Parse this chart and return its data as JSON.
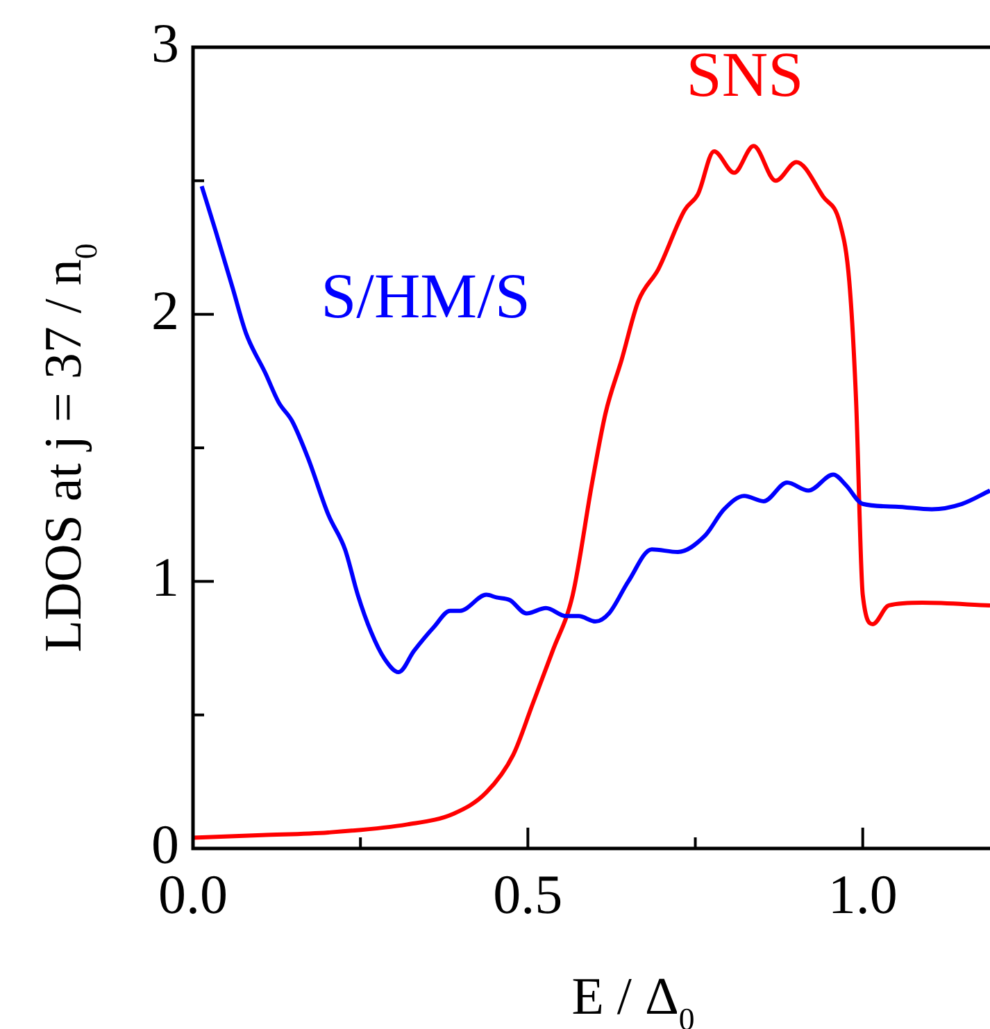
{
  "chart_data": {
    "type": "line",
    "xlabel": "E / Δ$_{0}$",
    "ylabel": "LDOS at j = 37 / n$_{0}$",
    "xlim": [
      0,
      1.19
    ],
    "ylim": [
      0,
      3
    ],
    "xticks": [
      {
        "value": 0,
        "label": "0.0"
      },
      {
        "value": 0.25,
        "label": null
      },
      {
        "value": 0.5,
        "label": "0.5"
      },
      {
        "value": 0.75,
        "label": null
      },
      {
        "value": 1,
        "label": "1.0"
      }
    ],
    "yticks": [
      0,
      {
        "value": 0.5,
        "label": null
      },
      1,
      {
        "value": 1.5,
        "label": null
      },
      2,
      {
        "value": 2.5,
        "label": null
      },
      3
    ],
    "grid": false,
    "legend": false,
    "marker": "none",
    "line_style": "solid",
    "series": [
      {
        "name": "S/HM/S",
        "color": "#0000ff",
        "x": [
          0.013,
          0.034,
          0.059,
          0.079,
          0.108,
          0.128,
          0.148,
          0.172,
          0.202,
          0.227,
          0.246,
          0.266,
          0.286,
          0.307,
          0.33,
          0.36,
          0.384,
          0.399,
          0.438,
          0.453,
          0.473,
          0.498,
          0.527,
          0.557,
          0.576,
          0.601,
          0.621,
          0.65,
          0.685,
          0.724,
          0.764,
          0.793,
          0.823,
          0.852,
          0.887,
          0.919,
          0.956,
          0.975,
          1.0,
          1.049,
          1.103,
          1.148,
          1.19
        ],
        "values": [
          2.48,
          2.31,
          2.1,
          1.93,
          1.78,
          1.67,
          1.6,
          1.46,
          1.25,
          1.12,
          0.95,
          0.81,
          0.71,
          0.66,
          0.74,
          0.83,
          0.89,
          0.89,
          0.95,
          0.94,
          0.93,
          0.88,
          0.9,
          0.87,
          0.87,
          0.85,
          0.88,
          1.0,
          1.12,
          1.11,
          1.17,
          1.27,
          1.32,
          1.3,
          1.37,
          1.34,
          1.4,
          1.36,
          1.29,
          1.28,
          1.27,
          1.29,
          1.34
        ]
      },
      {
        "name": "SNS",
        "color": "#ff0000",
        "x": [
          0,
          0.103,
          0.202,
          0.32,
          0.389,
          0.438,
          0.478,
          0.507,
          0.537,
          0.567,
          0.596,
          0.616,
          0.64,
          0.665,
          0.695,
          0.734,
          0.754,
          0.778,
          0.808,
          0.837,
          0.87,
          0.901,
          0.941,
          0.966,
          0.98,
          0.99,
          1.0,
          1.015,
          1.039,
          1.089,
          1.19
        ],
        "values": [
          0.04,
          0.05,
          0.06,
          0.09,
          0.13,
          0.21,
          0.35,
          0.54,
          0.74,
          0.95,
          1.37,
          1.63,
          1.83,
          2.05,
          2.17,
          2.39,
          2.45,
          2.61,
          2.53,
          2.63,
          2.5,
          2.57,
          2.44,
          2.34,
          2.12,
          1.68,
          0.95,
          0.84,
          0.91,
          0.92,
          0.91
        ]
      }
    ]
  }
}
